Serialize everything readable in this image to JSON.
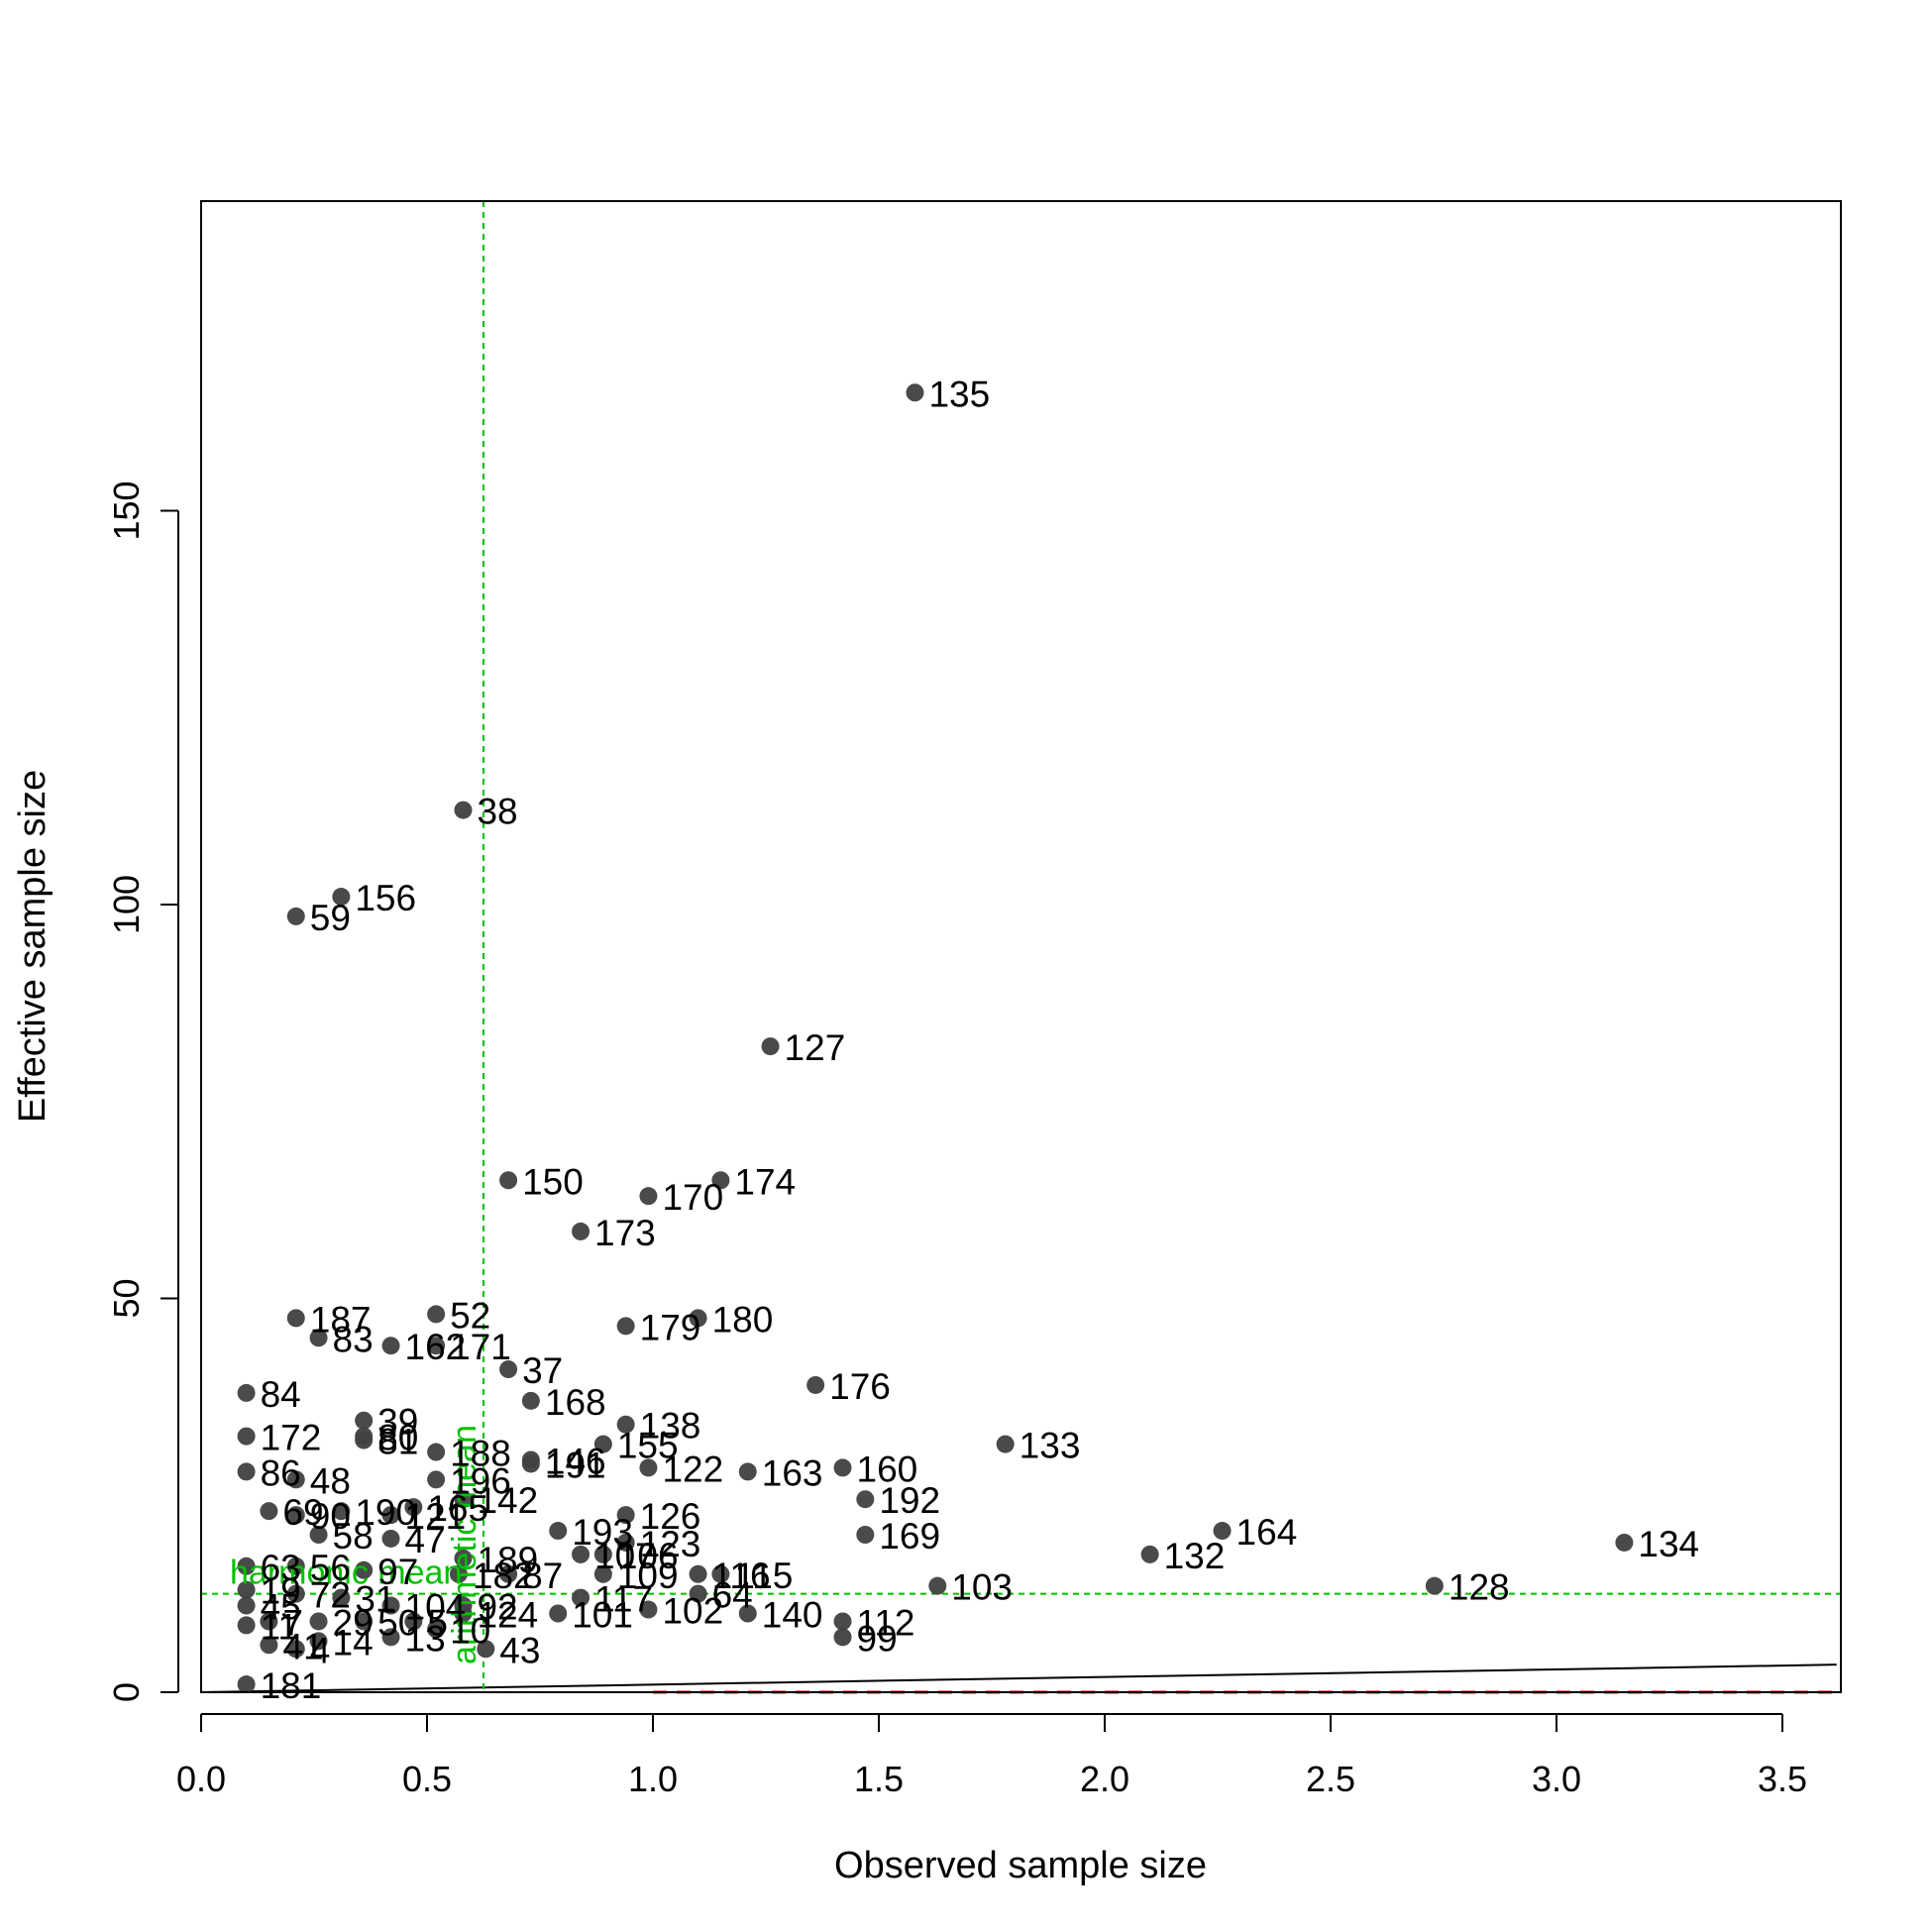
{
  "chart_data": {
    "type": "scatter",
    "title": "",
    "xlabel": "Observed sample size",
    "ylabel": "Effective sample size",
    "xlim": [
      0,
      3.62
    ],
    "ylim": [
      0,
      190
    ],
    "xticks": [
      0.0,
      0.5,
      1.0,
      1.5,
      2.0,
      2.5,
      3.0,
      3.5
    ],
    "xtick_labels": [
      "0.0",
      "0.5",
      "1.0",
      "1.5",
      "2.0",
      "2.5",
      "3.0",
      "3.5"
    ],
    "yticks": [
      0,
      50,
      100,
      150
    ],
    "ytick_labels": [
      "0",
      "50",
      "100",
      "150"
    ],
    "grid": false,
    "colors": {
      "points": "#404040",
      "reference_lines": "#00c000",
      "dashed_baseline": "#ff0000",
      "solid_line": "#000000"
    },
    "points": [
      {
        "label": "135",
        "x": 1.58,
        "y": 165
      },
      {
        "label": "38",
        "x": 0.58,
        "y": 112
      },
      {
        "label": "156",
        "x": 0.31,
        "y": 101
      },
      {
        "label": "59",
        "x": 0.21,
        "y": 98.5
      },
      {
        "label": "127",
        "x": 1.26,
        "y": 82
      },
      {
        "label": "150",
        "x": 0.68,
        "y": 65
      },
      {
        "label": "174",
        "x": 1.15,
        "y": 65
      },
      {
        "label": "170",
        "x": 0.99,
        "y": 63
      },
      {
        "label": "173",
        "x": 0.84,
        "y": 58.5
      },
      {
        "label": "187",
        "x": 0.21,
        "y": 47.5
      },
      {
        "label": "52",
        "x": 0.52,
        "y": 48
      },
      {
        "label": "180",
        "x": 1.1,
        "y": 47.5
      },
      {
        "label": "179",
        "x": 0.94,
        "y": 46.5
      },
      {
        "label": "83",
        "x": 0.26,
        "y": 45
      },
      {
        "label": "162",
        "x": 0.42,
        "y": 44
      },
      {
        "label": "171",
        "x": 0.52,
        "y": 44
      },
      {
        "label": "37",
        "x": 0.68,
        "y": 41
      },
      {
        "label": "176",
        "x": 1.36,
        "y": 39
      },
      {
        "label": "84",
        "x": 0.1,
        "y": 38
      },
      {
        "label": "168",
        "x": 0.73,
        "y": 37
      },
      {
        "label": "39",
        "x": 0.36,
        "y": 34.5
      },
      {
        "label": "138",
        "x": 0.94,
        "y": 34
      },
      {
        "label": "172",
        "x": 0.1,
        "y": 32.5
      },
      {
        "label": "80",
        "x": 0.36,
        "y": 32.5
      },
      {
        "label": "133",
        "x": 1.78,
        "y": 31.5
      },
      {
        "label": "155",
        "x": 0.89,
        "y": 31.5
      },
      {
        "label": "81",
        "x": 0.36,
        "y": 32
      },
      {
        "label": "188",
        "x": 0.52,
        "y": 30.5
      },
      {
        "label": "146",
        "x": 0.73,
        "y": 29.5
      },
      {
        "label": "191",
        "x": 0.73,
        "y": 29
      },
      {
        "label": "122",
        "x": 0.99,
        "y": 28.5
      },
      {
        "label": "160",
        "x": 1.42,
        "y": 28.5
      },
      {
        "label": "163",
        "x": 1.21,
        "y": 28
      },
      {
        "label": "86",
        "x": 0.1,
        "y": 28
      },
      {
        "label": "48",
        "x": 0.21,
        "y": 27
      },
      {
        "label": "196",
        "x": 0.52,
        "y": 27
      },
      {
        "label": "192",
        "x": 1.47,
        "y": 24.5
      },
      {
        "label": "142",
        "x": 0.58,
        "y": 24.5
      },
      {
        "label": "69",
        "x": 0.15,
        "y": 23
      },
      {
        "label": "126",
        "x": 0.94,
        "y": 22.5
      },
      {
        "label": "90",
        "x": 0.21,
        "y": 22.5
      },
      {
        "label": "165",
        "x": 0.47,
        "y": 23.5
      },
      {
        "label": "190",
        "x": 0.31,
        "y": 23
      },
      {
        "label": "121",
        "x": 0.42,
        "y": 22.5
      },
      {
        "label": "164",
        "x": 2.26,
        "y": 20.5
      },
      {
        "label": "58",
        "x": 0.26,
        "y": 20
      },
      {
        "label": "193",
        "x": 0.79,
        "y": 20.5
      },
      {
        "label": "123",
        "x": 0.94,
        "y": 19
      },
      {
        "label": "169",
        "x": 1.47,
        "y": 20
      },
      {
        "label": "134",
        "x": 3.15,
        "y": 19
      },
      {
        "label": "47",
        "x": 0.42,
        "y": 19.5
      },
      {
        "label": "132",
        "x": 2.1,
        "y": 17.5
      },
      {
        "label": "106",
        "x": 0.89,
        "y": 17.5
      },
      {
        "label": "107",
        "x": 0.84,
        "y": 17.5
      },
      {
        "label": "189",
        "x": 0.58,
        "y": 17
      },
      {
        "label": "63",
        "x": 0.1,
        "y": 16
      },
      {
        "label": "56",
        "x": 0.21,
        "y": 16
      },
      {
        "label": "97",
        "x": 0.36,
        "y": 15.5
      },
      {
        "label": "115",
        "x": 1.15,
        "y": 15
      },
      {
        "label": "116",
        "x": 1.1,
        "y": 15
      },
      {
        "label": "109",
        "x": 0.89,
        "y": 15
      },
      {
        "label": "87",
        "x": 0.68,
        "y": 15
      },
      {
        "label": "182",
        "x": 0.57,
        "y": 15
      },
      {
        "label": "103",
        "x": 1.63,
        "y": 13.5
      },
      {
        "label": "128",
        "x": 2.73,
        "y": 13.5
      },
      {
        "label": "64",
        "x": 1.1,
        "y": 12.5
      },
      {
        "label": "117",
        "x": 0.84,
        "y": 12
      },
      {
        "label": "19",
        "x": 0.1,
        "y": 13
      },
      {
        "label": "72",
        "x": 0.21,
        "y": 12.5
      },
      {
        "label": "31",
        "x": 0.31,
        "y": 12
      },
      {
        "label": "104",
        "x": 0.42,
        "y": 11
      },
      {
        "label": "92",
        "x": 0.58,
        "y": 11
      },
      {
        "label": "101",
        "x": 0.79,
        "y": 10
      },
      {
        "label": "102",
        "x": 0.99,
        "y": 10.5
      },
      {
        "label": "140",
        "x": 1.21,
        "y": 10
      },
      {
        "label": "112",
        "x": 1.42,
        "y": 9
      },
      {
        "label": "99",
        "x": 1.42,
        "y": 7
      },
      {
        "label": "124",
        "x": 0.58,
        "y": 10
      },
      {
        "label": "45",
        "x": 0.1,
        "y": 11
      },
      {
        "label": "7",
        "x": 0.15,
        "y": 9
      },
      {
        "label": "29",
        "x": 0.26,
        "y": 9
      },
      {
        "label": "50",
        "x": 0.36,
        "y": 9
      },
      {
        "label": "5",
        "x": 0.47,
        "y": 9
      },
      {
        "label": "10",
        "x": 0.52,
        "y": 8
      },
      {
        "label": "11",
        "x": 0.1,
        "y": 8.5
      },
      {
        "label": "13",
        "x": 0.42,
        "y": 7
      },
      {
        "label": "14",
        "x": 0.26,
        "y": 6.5
      },
      {
        "label": "43",
        "x": 0.63,
        "y": 5.5
      },
      {
        "label": "41",
        "x": 0.15,
        "y": 6
      },
      {
        "label": "4",
        "x": 0.21,
        "y": 5.5
      },
      {
        "label": "181",
        "x": 0.1,
        "y": 1
      }
    ],
    "reference_lines": [
      {
        "label": "arithmetic mean",
        "orientation": "vertical",
        "value": 0.625
      },
      {
        "label": "harmonic mean",
        "orientation": "horizontal",
        "value": 12.5
      }
    ],
    "baseline": {
      "orientation": "horizontal",
      "value": 0,
      "x_from": 1.0,
      "style": "dashed"
    },
    "fit_line": {
      "x": [
        0,
        3.62
      ],
      "y": [
        0,
        3.5
      ]
    }
  }
}
